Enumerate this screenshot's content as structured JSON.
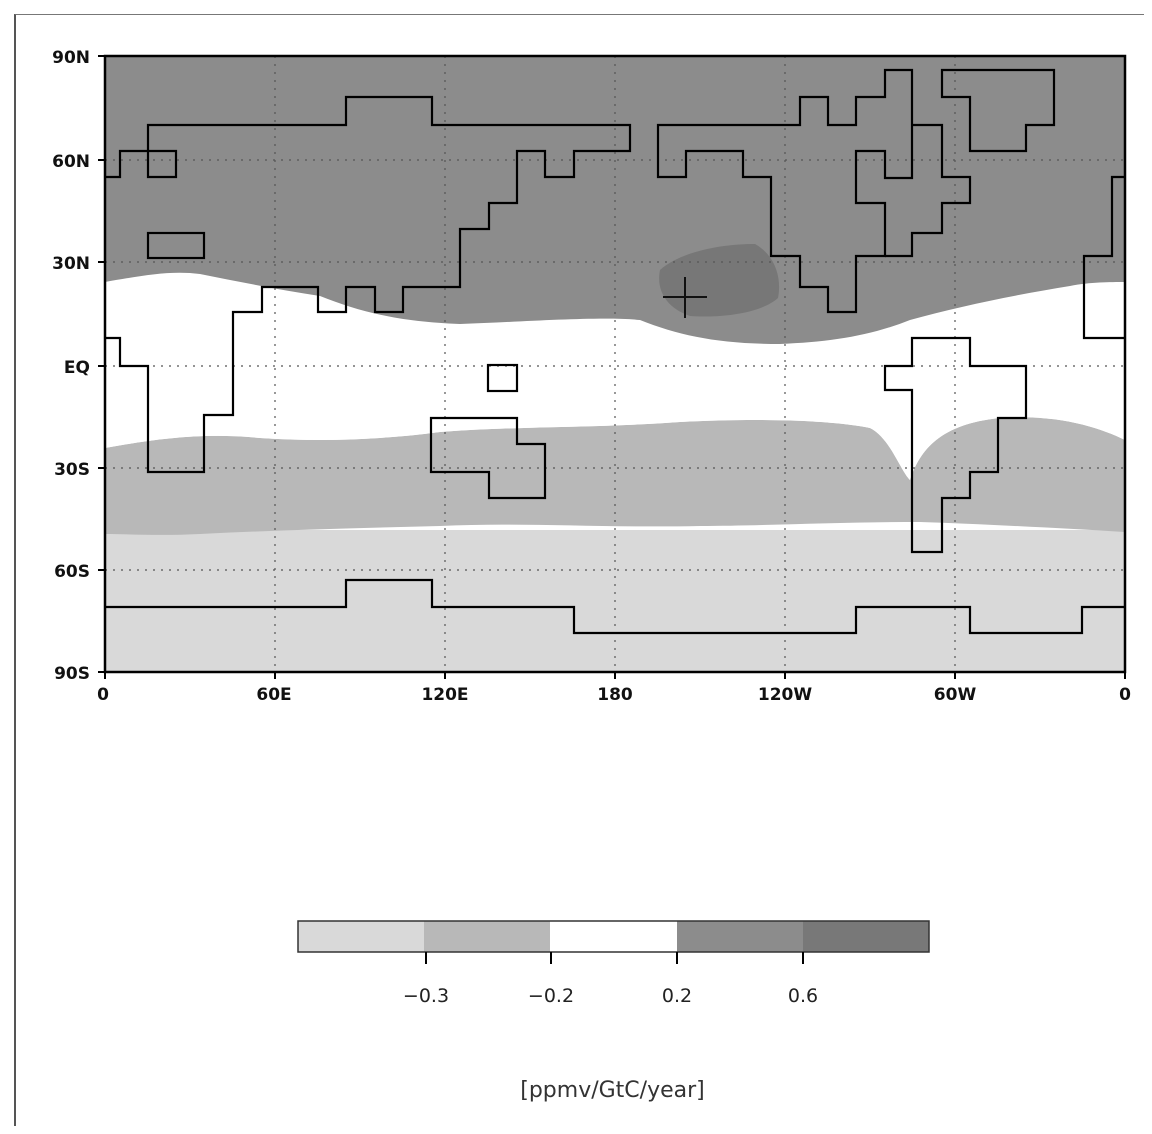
{
  "map": {
    "latitude_labels": [
      "90N",
      "60N",
      "30N",
      "EQ",
      "30S",
      "60S",
      "90S"
    ],
    "longitude_labels": [
      "0",
      "60E",
      "120E",
      "180",
      "120W",
      "60W",
      "0"
    ],
    "grid_style": "dotted",
    "marker": {
      "symbol": "+",
      "lon": -155,
      "lat": 19
    }
  },
  "colorbar": {
    "tick_labels": [
      "−0.3",
      "−0.2",
      "0.2",
      "0.6"
    ],
    "colors": [
      "#d9d9d9",
      "#b8b8b8",
      "#ffffff",
      "#8c8c8c",
      "#787878"
    ]
  },
  "units_label": "[ppmv/GtC/year]",
  "colors": {
    "north_band": "#8c8c8c",
    "north_max": "#777777",
    "equatorial": "#ffffff",
    "southern_mid": "#b8b8b8",
    "southern_high": "#d9d9d9",
    "outline": "#000000"
  }
}
